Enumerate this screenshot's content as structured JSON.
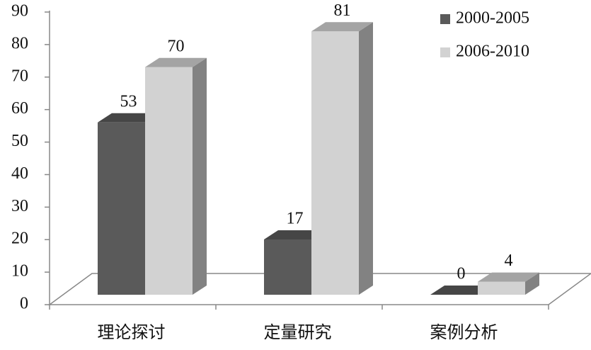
{
  "chart_data": {
    "type": "bar3d",
    "categories": [
      "理论探讨",
      "定量研究",
      "案例分析"
    ],
    "series": [
      {
        "name": "2000-2005",
        "color": "#5a5a5a",
        "values": [
          53,
          17,
          0
        ]
      },
      {
        "name": "2006-2010",
        "color": "#d2d2d2",
        "values": [
          70,
          81,
          4
        ]
      }
    ],
    "ylim": [
      0,
      90
    ],
    "yticks": [
      0,
      10,
      20,
      30,
      40,
      50,
      60,
      70,
      80,
      90
    ],
    "legend": "top-right"
  }
}
